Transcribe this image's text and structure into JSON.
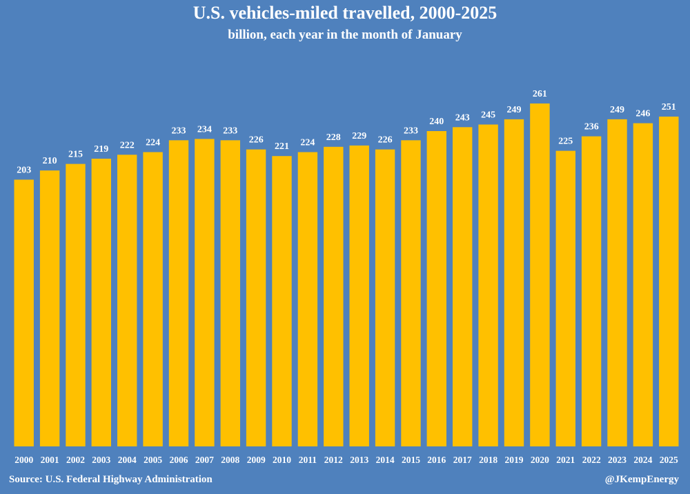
{
  "chart_data": {
    "type": "bar",
    "title": "U.S. vehicles-miled travelled, 2000-2025",
    "subtitle": "billion, each year in the month of January",
    "xlabel": "",
    "ylabel": "",
    "categories": [
      "2000",
      "2001",
      "2002",
      "2003",
      "2004",
      "2005",
      "2006",
      "2007",
      "2008",
      "2009",
      "2010",
      "2011",
      "2012",
      "2013",
      "2014",
      "2015",
      "2016",
      "2017",
      "2018",
      "2019",
      "2020",
      "2021",
      "2022",
      "2023",
      "2024",
      "2025"
    ],
    "values": [
      203,
      210,
      215,
      219,
      222,
      224,
      233,
      234,
      233,
      226,
      221,
      224,
      228,
      229,
      226,
      233,
      240,
      243,
      245,
      249,
      261,
      225,
      236,
      249,
      246,
      251
    ],
    "ylim": [
      0,
      261
    ],
    "grid": false,
    "legend": "none",
    "data_labels": true,
    "colors": {
      "background": "#4f81bd",
      "bar": "#ffc000",
      "text": "#ffffff"
    }
  },
  "footer": {
    "source": "Source: U.S. Federal Highway Administration",
    "handle": "@JKempEnergy"
  }
}
